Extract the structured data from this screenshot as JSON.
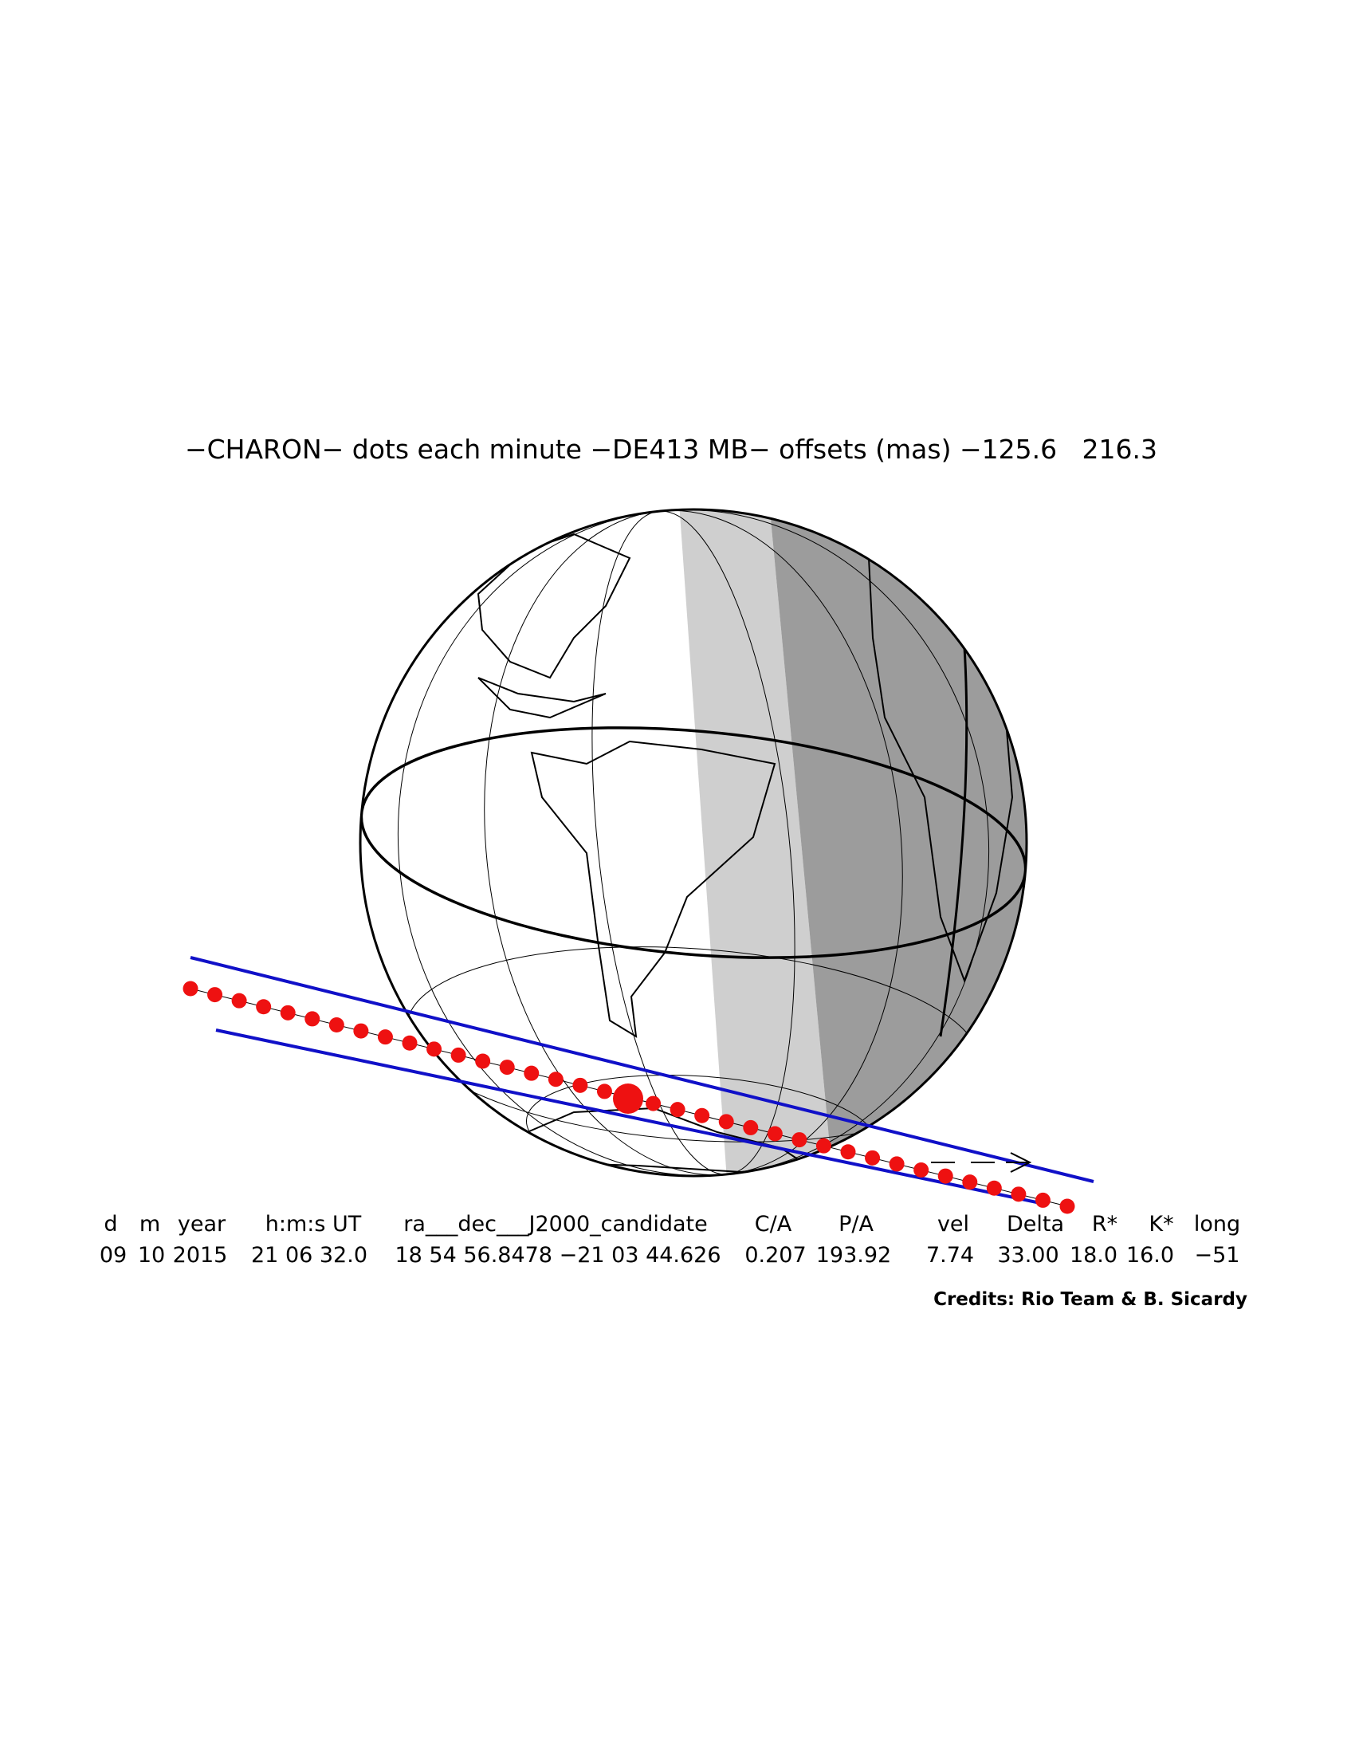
{
  "title": "−CHARON− dots each minute −DE413 MB− offsets (mas) −125.6   216.3",
  "table": {
    "header": [
      "d",
      "m",
      "year",
      "h:m:s UT",
      "ra___dec___J2000_candidate",
      "C/A",
      "P/A",
      "vel",
      "Delta",
      "R*",
      "K*",
      "long"
    ],
    "values": [
      "09",
      "10",
      "2015",
      "21 06 32.0",
      "18 54 56.8478 −21 03 44.626",
      "0.207",
      "193.92",
      "7.74",
      "33.00",
      "18.0",
      "16.0",
      "−51"
    ]
  },
  "credits": "Credits: Rio Team & B. Sicardy"
}
